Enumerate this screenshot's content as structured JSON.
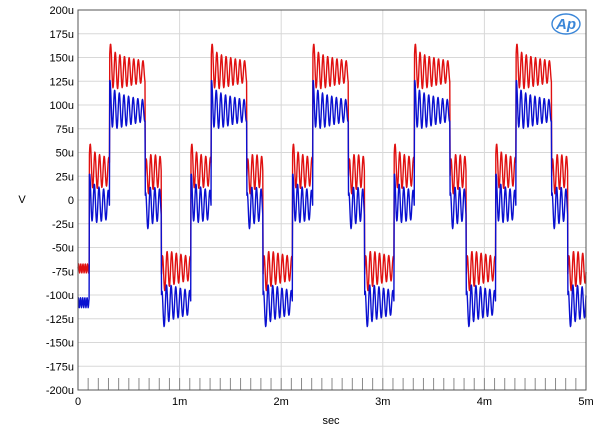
{
  "chart_data": {
    "type": "line",
    "title": "",
    "xlabel": "sec",
    "ylabel": "V",
    "xlim": [
      0,
      0.005
    ],
    "ylim": [
      -0.0002,
      0.0002
    ],
    "grid": true,
    "x_ticks": [
      {
        "value": 0,
        "label": "0"
      },
      {
        "value": 0.001,
        "label": "1m"
      },
      {
        "value": 0.002,
        "label": "2m"
      },
      {
        "value": 0.003,
        "label": "3m"
      },
      {
        "value": 0.004,
        "label": "4m"
      },
      {
        "value": 0.005,
        "label": "5m"
      }
    ],
    "y_ticks": [
      {
        "value": 0.0002,
        "label": "200u"
      },
      {
        "value": 0.000175,
        "label": "175u"
      },
      {
        "value": 0.00015,
        "label": "150u"
      },
      {
        "value": 0.000125,
        "label": "125u"
      },
      {
        "value": 0.0001,
        "label": "100u"
      },
      {
        "value": 7.5e-05,
        "label": "75u"
      },
      {
        "value": 5e-05,
        "label": "50u"
      },
      {
        "value": 2.5e-05,
        "label": "25u"
      },
      {
        "value": 0,
        "label": "0"
      },
      {
        "value": -2.5e-05,
        "label": "-25u"
      },
      {
        "value": -5e-05,
        "label": "-50u"
      },
      {
        "value": -7.5e-05,
        "label": "-75u"
      },
      {
        "value": -0.0001,
        "label": "-100u"
      },
      {
        "value": -0.000125,
        "label": "-125u"
      },
      {
        "value": -0.00015,
        "label": "-150u"
      },
      {
        "value": -0.000175,
        "label": "-175u"
      },
      {
        "value": -0.0002,
        "label": "-200u"
      }
    ],
    "period": 0.001,
    "start_offset": 0.00011,
    "series": [
      {
        "color": "#e01010",
        "steps": [
          {
            "t": 0.0,
            "v": 3e-05
          },
          {
            "t": 0.2,
            "v": 0.000135
          },
          {
            "t": 0.55,
            "v": 3e-05
          },
          {
            "t": 0.71,
            "v": -7.2e-05
          }
        ],
        "ripple": 8e-06
      },
      {
        "color": "#0a10d0",
        "steps": [
          {
            "t": 0.0,
            "v": -5e-06
          },
          {
            "t": 0.2,
            "v": 9.4e-05
          },
          {
            "t": 0.55,
            "v": -5e-06
          },
          {
            "t": 0.71,
            "v": -0.000108
          }
        ],
        "ripple": 9e-06
      }
    ]
  },
  "logo": {
    "text": "Ap"
  }
}
